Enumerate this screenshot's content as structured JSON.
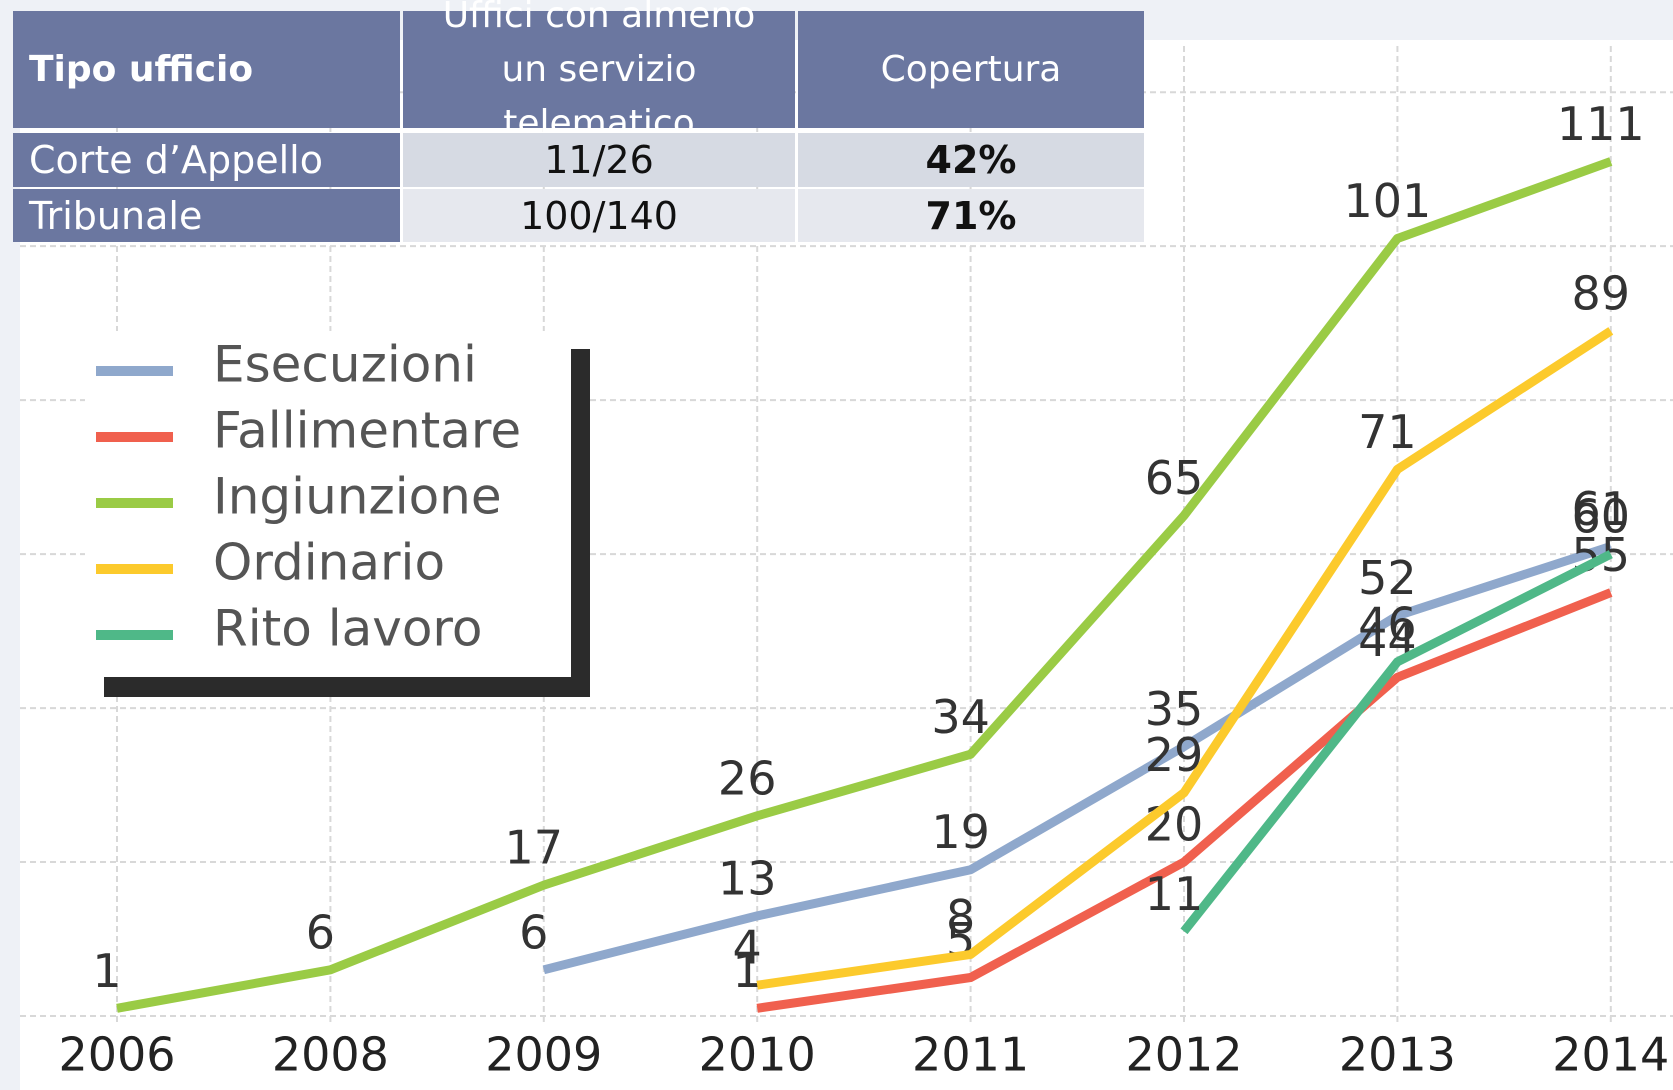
{
  "table": {
    "header": [
      "Tipo ufficio",
      "Uffici con almeno un servizio telematico",
      "Copertura"
    ],
    "rows": [
      [
        "Corte d’Appello",
        "11/26",
        "42%"
      ],
      [
        "Tribunale",
        "100/140",
        "71%"
      ]
    ]
  },
  "chart_data": {
    "type": "line",
    "categories": [
      "2006",
      "2008",
      "2009",
      "2010",
      "2011",
      "2012",
      "2013",
      "2014"
    ],
    "series": [
      {
        "name": "Esecuzioni",
        "color": "#8fa8cc",
        "values": [
          null,
          null,
          6,
          13,
          19,
          35,
          52,
          61
        ]
      },
      {
        "name": "Fallimentare",
        "color": "#f0604e",
        "values": [
          null,
          null,
          null,
          1,
          5,
          20,
          44,
          55
        ]
      },
      {
        "name": "Ingiunzione",
        "color": "#9acb45",
        "values": [
          1,
          6,
          17,
          26,
          34,
          65,
          101,
          111
        ]
      },
      {
        "name": "Ordinario",
        "color": "#fcca2c",
        "values": [
          null,
          null,
          null,
          4,
          8,
          29,
          71,
          89
        ]
      },
      {
        "name": "Rito lavoro",
        "color": "#4fb888",
        "values": [
          null,
          null,
          null,
          null,
          null,
          11,
          46,
          60
        ]
      }
    ],
    "ylim": [
      0,
      126
    ],
    "yticks": [
      0,
      20,
      40,
      60,
      80,
      100,
      120
    ],
    "grid": true,
    "legend": "left"
  }
}
